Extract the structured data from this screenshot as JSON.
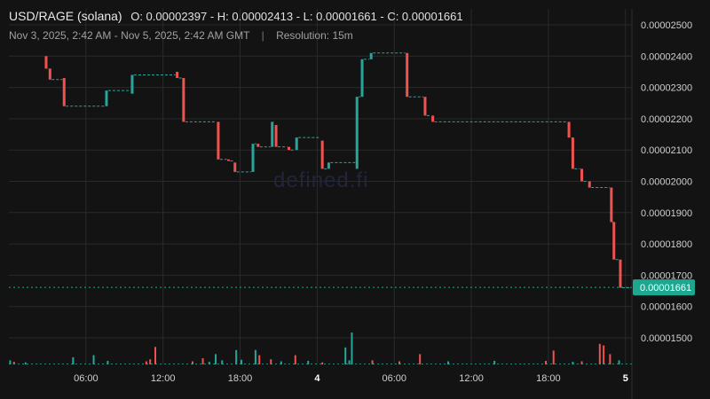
{
  "header": {
    "symbol": "USD/RAGE (solana)",
    "ohlc": "O: 0.00002397 - H: 0.00002413 - L: 0.00001661 - C: 0.00001661",
    "range": "Nov 3, 2025, 2:42 AM - Nov 5, 2025, 2:42 AM GMT",
    "separator": "|",
    "resolution": "Resolution: 15m"
  },
  "watermark": "defined.fi",
  "colors": {
    "background": "#131313",
    "up": "#26a69a",
    "down": "#ef5350",
    "grid": "#2a2a2a",
    "price_badge": "#1ba88f"
  },
  "chart_data": {
    "type": "candlestick",
    "x_tick_labels": [
      "06:00",
      "12:00",
      "18:00",
      "4",
      "06:00",
      "12:00",
      "18:00",
      "5"
    ],
    "x_tick_hours": [
      6,
      12,
      18,
      24,
      30,
      36,
      42,
      48
    ],
    "y_tick_labels": [
      "0.00002500",
      "0.00002400",
      "0.00002300",
      "0.00002200",
      "0.00002100",
      "0.00002000",
      "0.00001900",
      "0.00001800",
      "0.00001700",
      "0.00001600",
      "0.00001500"
    ],
    "ylim": [
      1.44e-05,
      2.54e-05
    ],
    "last_price_label": "0.00001661",
    "last_price": 1.661e-05,
    "candles": [
      {
        "t": 2.9,
        "o": 2.4e-05,
        "c": 2.36e-05
      },
      {
        "t": 3.2,
        "o": 2.36e-05,
        "c": 2.325e-05
      },
      {
        "t": 4.3,
        "o": 2.33e-05,
        "c": 2.24e-05
      },
      {
        "t": 7.6,
        "o": 2.24e-05,
        "c": 2.29e-05
      },
      {
        "t": 9.6,
        "o": 2.28e-05,
        "c": 2.34e-05
      },
      {
        "t": 13.1,
        "o": 2.35e-05,
        "c": 2.33e-05
      },
      {
        "t": 13.6,
        "o": 2.33e-05,
        "c": 2.19e-05
      },
      {
        "t": 16.3,
        "o": 2.19e-05,
        "c": 2.07e-05
      },
      {
        "t": 17.1,
        "o": 2.07e-05,
        "c": 2.065e-05
      },
      {
        "t": 17.6,
        "o": 2.06e-05,
        "c": 2.03e-05
      },
      {
        "t": 19.0,
        "o": 2.03e-05,
        "c": 2.12e-05
      },
      {
        "t": 19.4,
        "o": 2.12e-05,
        "c": 2.11e-05
      },
      {
        "t": 20.5,
        "o": 2.11e-05,
        "c": 2.19e-05
      },
      {
        "t": 20.8,
        "o": 2.18e-05,
        "c": 2.11e-05
      },
      {
        "t": 21.8,
        "o": 2.11e-05,
        "c": 2.1e-05
      },
      {
        "t": 22.4,
        "o": 2.1e-05,
        "c": 2.14e-05
      },
      {
        "t": 24.4,
        "o": 2.13e-05,
        "c": 2.04e-05
      },
      {
        "t": 24.9,
        "o": 2.04e-05,
        "c": 2.06e-05
      },
      {
        "t": 27.1,
        "o": 2.04e-05,
        "c": 2.27e-05
      },
      {
        "t": 27.5,
        "o": 2.27e-05,
        "c": 2.39e-05
      },
      {
        "t": 28.2,
        "o": 2.39e-05,
        "c": 2.41e-05
      },
      {
        "t": 31.0,
        "o": 2.41e-05,
        "c": 2.27e-05
      },
      {
        "t": 32.4,
        "o": 2.27e-05,
        "c": 2.21e-05
      },
      {
        "t": 33.0,
        "o": 2.21e-05,
        "c": 2.19e-05
      },
      {
        "t": 43.6,
        "o": 2.19e-05,
        "c": 2.14e-05
      },
      {
        "t": 43.9,
        "o": 2.14e-05,
        "c": 2.04e-05
      },
      {
        "t": 44.6,
        "o": 2.04e-05,
        "c": 2e-05
      },
      {
        "t": 45.2,
        "o": 2e-05,
        "c": 1.98e-05
      },
      {
        "t": 46.9,
        "o": 1.98e-05,
        "c": 1.87e-05
      },
      {
        "t": 47.1,
        "o": 1.87e-05,
        "c": 1.75e-05
      },
      {
        "t": 47.6,
        "o": 1.75e-05,
        "c": 1.66e-05
      }
    ],
    "volume_max": 100,
    "volume": [
      {
        "t": 0.1,
        "v": 8,
        "up": true
      },
      {
        "t": 0.4,
        "v": 5,
        "up": false
      },
      {
        "t": 1.3,
        "v": 4,
        "up": true
      },
      {
        "t": 5.0,
        "v": 14,
        "up": true
      },
      {
        "t": 6.6,
        "v": 18,
        "up": true
      },
      {
        "t": 7.7,
        "v": 7,
        "up": true
      },
      {
        "t": 10.7,
        "v": 6,
        "up": false
      },
      {
        "t": 11.0,
        "v": 10,
        "up": false
      },
      {
        "t": 11.4,
        "v": 34,
        "up": false
      },
      {
        "t": 14.3,
        "v": 6,
        "up": false
      },
      {
        "t": 15.1,
        "v": 12,
        "up": false
      },
      {
        "t": 15.6,
        "v": 5,
        "up": true
      },
      {
        "t": 16.1,
        "v": 20,
        "up": true
      },
      {
        "t": 16.6,
        "v": 8,
        "up": true
      },
      {
        "t": 17.7,
        "v": 28,
        "up": true
      },
      {
        "t": 18.1,
        "v": 9,
        "up": true
      },
      {
        "t": 19.2,
        "v": 28,
        "up": true
      },
      {
        "t": 19.5,
        "v": 18,
        "up": false
      },
      {
        "t": 20.4,
        "v": 10,
        "up": false
      },
      {
        "t": 21.2,
        "v": 6,
        "up": true
      },
      {
        "t": 22.3,
        "v": 18,
        "up": false
      },
      {
        "t": 23.3,
        "v": 7,
        "up": true
      },
      {
        "t": 24.4,
        "v": 4,
        "up": false
      },
      {
        "t": 26.2,
        "v": 33,
        "up": true
      },
      {
        "t": 26.5,
        "v": 8,
        "up": true
      },
      {
        "t": 26.7,
        "v": 62,
        "up": true
      },
      {
        "t": 28.3,
        "v": 8,
        "up": false
      },
      {
        "t": 30.4,
        "v": 6,
        "up": false
      },
      {
        "t": 32.0,
        "v": 20,
        "up": false
      },
      {
        "t": 34.2,
        "v": 6,
        "up": true
      },
      {
        "t": 37.8,
        "v": 7,
        "up": true
      },
      {
        "t": 41.8,
        "v": 7,
        "up": false
      },
      {
        "t": 42.4,
        "v": 27,
        "up": false
      },
      {
        "t": 43.9,
        "v": 5,
        "up": true
      },
      {
        "t": 44.6,
        "v": 6,
        "up": false
      },
      {
        "t": 46.0,
        "v": 40,
        "up": false
      },
      {
        "t": 46.3,
        "v": 37,
        "up": false
      },
      {
        "t": 46.8,
        "v": 20,
        "up": false
      },
      {
        "t": 47.5,
        "v": 8,
        "up": true
      }
    ]
  }
}
